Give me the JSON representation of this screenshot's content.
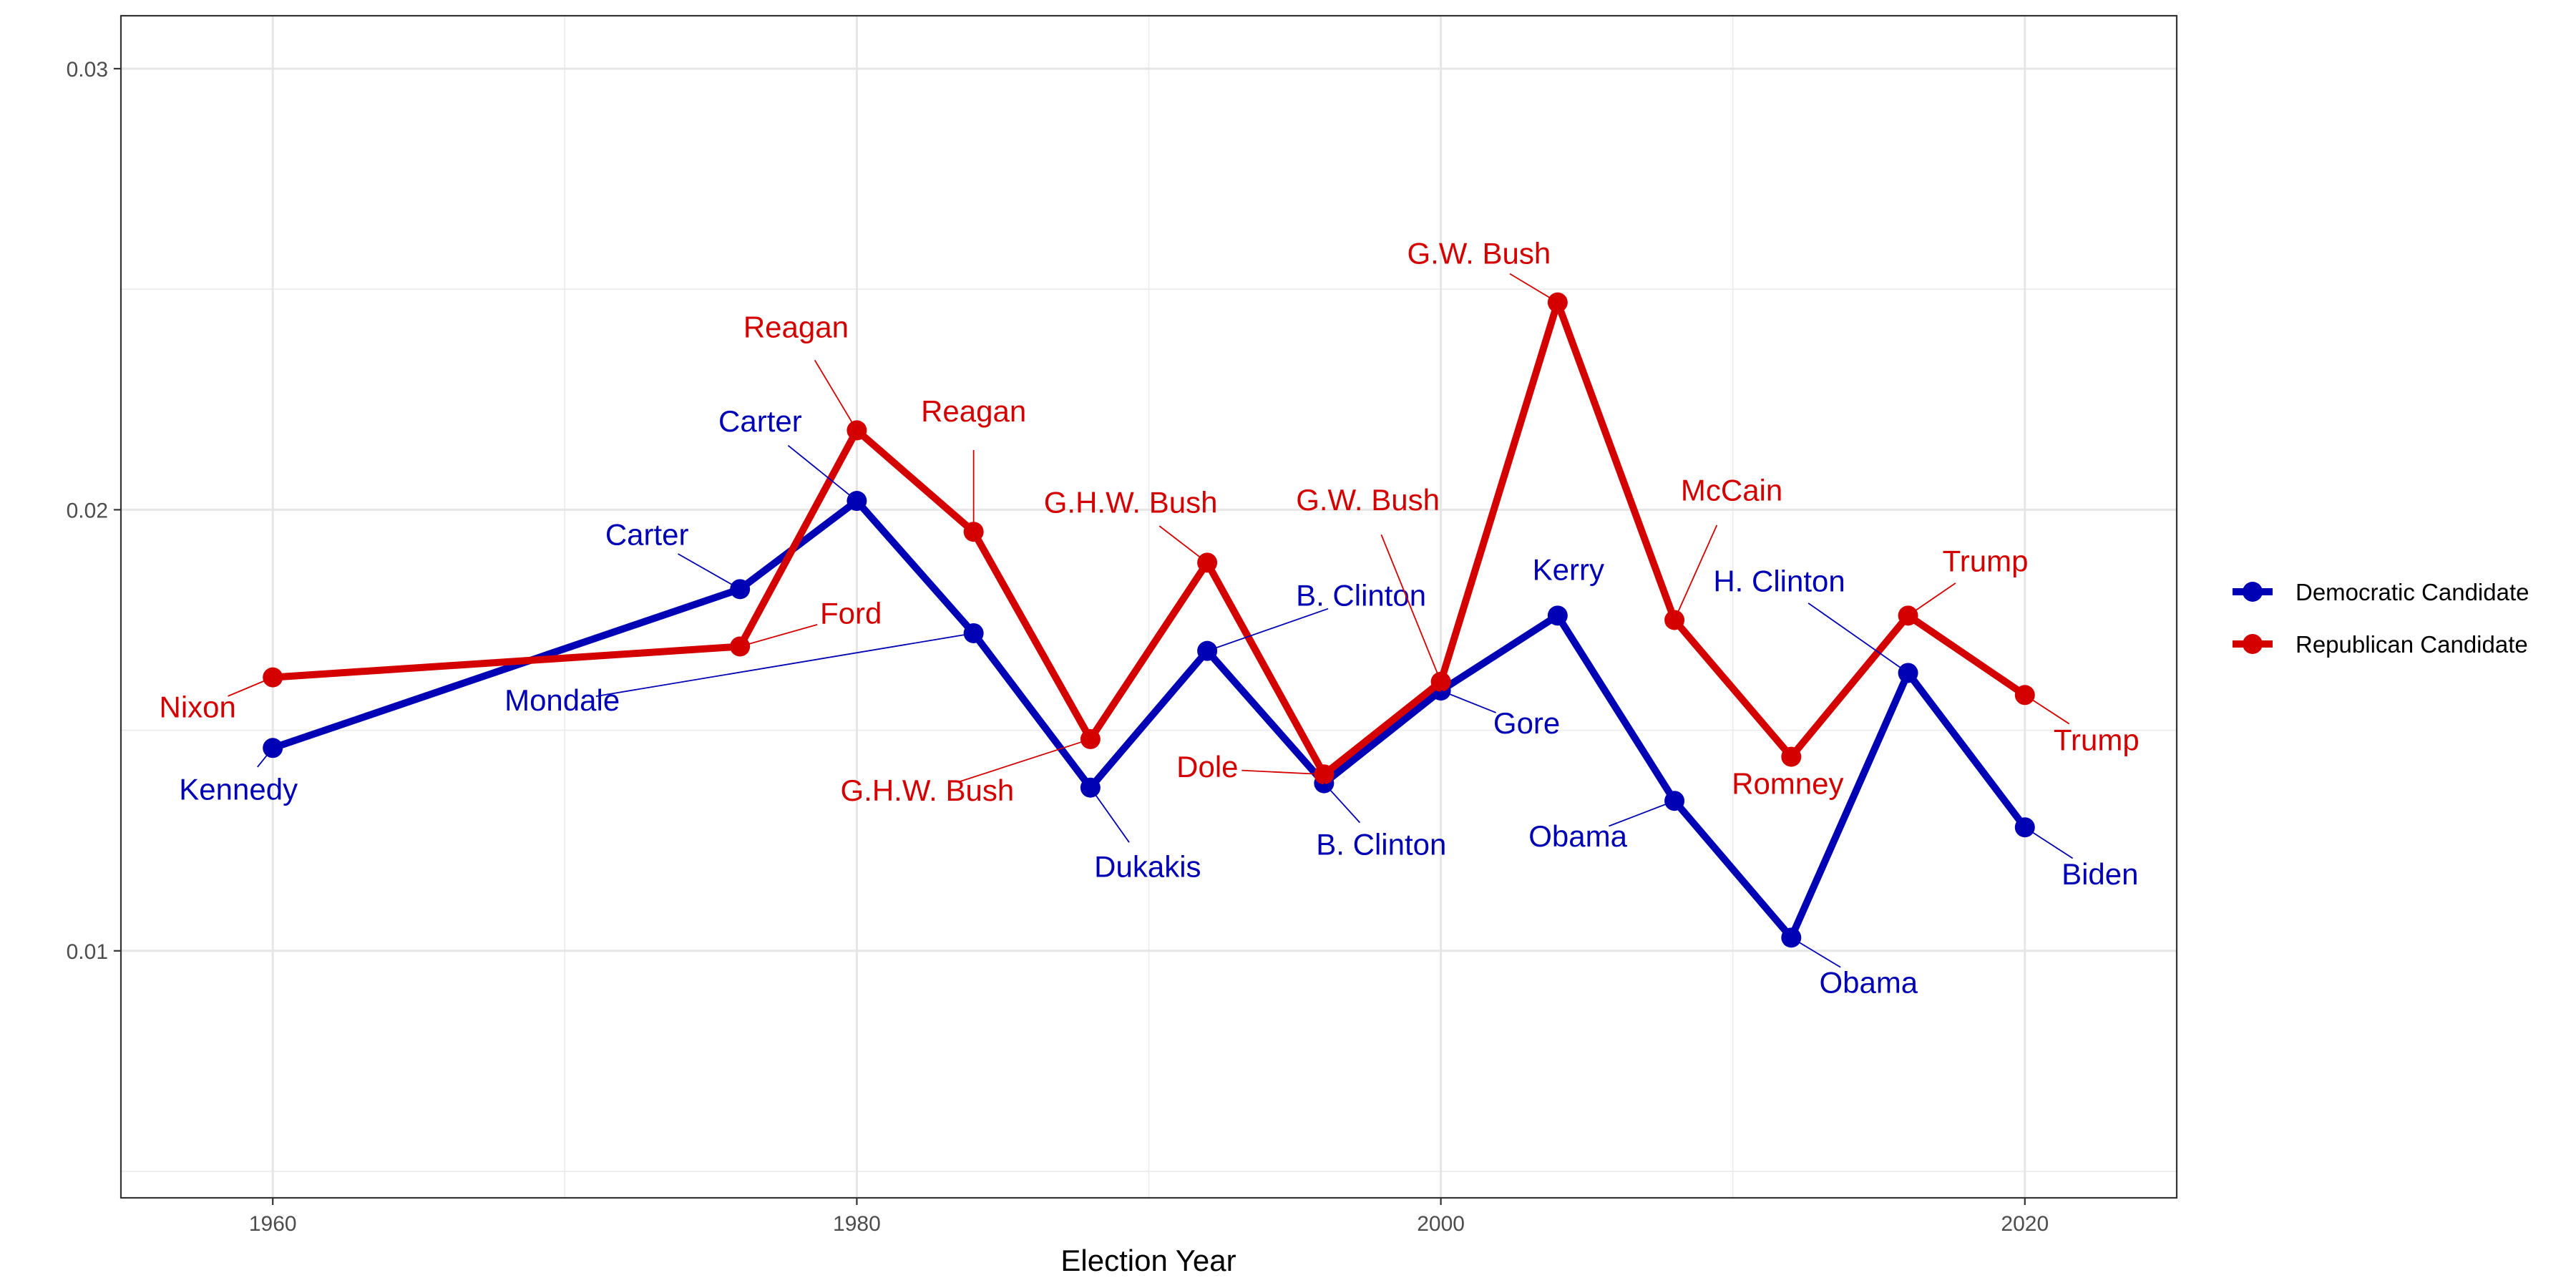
{
  "chart_data": {
    "type": "line",
    "title": "",
    "xlabel": "Election Year",
    "ylabel": "",
    "xlim": [
      1954.8,
      2025.2
    ],
    "ylim": [
      0.0044,
      0.0312
    ],
    "x_ticks": [
      1960,
      1980,
      2000,
      2020
    ],
    "x_tick_labels": [
      "1960",
      "1980",
      "2000",
      "2020"
    ],
    "y_ticks": [
      0.01,
      0.02,
      0.03
    ],
    "y_tick_labels": [
      "0.01",
      "0.02",
      "0.03"
    ],
    "grid": true,
    "legend_position": "right",
    "series": [
      {
        "name": "Democratic Candidate",
        "color": "#0000b4",
        "x": [
          1960,
          1976,
          1980,
          1984,
          1988,
          1992,
          1996,
          2000,
          2004,
          2008,
          2012,
          2016,
          2020
        ],
        "values": [
          0.0146,
          0.0182,
          0.0202,
          0.0172,
          0.0137,
          0.0168,
          0.0138,
          0.0159,
          0.0176,
          0.0134,
          0.0103,
          0.0163,
          0.0128
        ],
        "labels": [
          "Kennedy",
          "Carter",
          "Carter",
          "Mondale",
          "Dukakis",
          "B. Clinton",
          "B. Clinton",
          "Gore",
          "Kerry",
          "Obama",
          "Obama",
          "H. Clinton",
          "Biden"
        ]
      },
      {
        "name": "Republican Candidate",
        "color": "#d40000",
        "x": [
          1960,
          1976,
          1980,
          1984,
          1988,
          1992,
          1996,
          2000,
          2004,
          2008,
          2012,
          2016,
          2020
        ],
        "values": [
          0.0162,
          0.0169,
          0.0218,
          0.0195,
          0.0148,
          0.0188,
          0.014,
          0.0161,
          0.0247,
          0.0175,
          0.0144,
          0.0176,
          0.0158
        ],
        "labels": [
          "Nixon",
          "Ford",
          "Reagan",
          "Reagan",
          "G.H.W. Bush",
          "G.H.W. Bush",
          "Dole",
          "G.W. Bush",
          "G.W. Bush",
          "McCain",
          "Romney",
          "Trump",
          "Trump"
        ]
      }
    ]
  }
}
